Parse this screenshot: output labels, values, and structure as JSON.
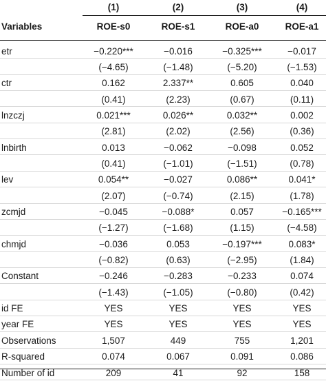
{
  "columns": [
    {
      "number": "(1)",
      "name": "ROE-s0"
    },
    {
      "number": "(2)",
      "name": "ROE-s1"
    },
    {
      "number": "(3)",
      "name": "ROE-a0"
    },
    {
      "number": "(4)",
      "name": "ROE-a1"
    }
  ],
  "variables_label": "Variables",
  "rows": [
    {
      "label": "etr",
      "values": [
        "−0.220***",
        "−0.016",
        "−0.325***",
        "−0.017"
      ]
    },
    {
      "label": "",
      "values": [
        "(−4.65)",
        "(−1.48)",
        "(−5.20)",
        "(−1.53)"
      ]
    },
    {
      "label": "ctr",
      "values": [
        "0.162",
        "2.337**",
        "0.605",
        "0.040"
      ]
    },
    {
      "label": "",
      "values": [
        "(0.41)",
        "(2.23)",
        "(0.67)",
        "(0.11)"
      ]
    },
    {
      "label": "lnzczj",
      "values": [
        "0.021***",
        "0.026**",
        "0.032**",
        "0.002"
      ]
    },
    {
      "label": "",
      "values": [
        "(2.81)",
        "(2.02)",
        "(2.56)",
        "(0.36)"
      ]
    },
    {
      "label": "lnbirth",
      "values": [
        "0.013",
        "−0.062",
        "−0.098",
        "0.052"
      ]
    },
    {
      "label": "",
      "values": [
        "(0.41)",
        "(−1.01)",
        "(−1.51)",
        "(0.78)"
      ]
    },
    {
      "label": "lev",
      "values": [
        "0.054**",
        "−0.027",
        "0.086**",
        "0.041*"
      ]
    },
    {
      "label": "",
      "values": [
        "(2.07)",
        "(−0.74)",
        "(2.15)",
        "(1.78)"
      ]
    },
    {
      "label": "zcmjd",
      "values": [
        "−0.045",
        "−0.088*",
        "0.057",
        "−0.165***"
      ]
    },
    {
      "label": "",
      "values": [
        "(−1.27)",
        "(−1.68)",
        "(1.15)",
        "(−4.58)"
      ]
    },
    {
      "label": "chmjd",
      "values": [
        "−0.036",
        "0.053",
        "−0.197***",
        "0.083*"
      ]
    },
    {
      "label": "",
      "values": [
        "(−0.82)",
        "(0.63)",
        "(−2.95)",
        "(1.84)"
      ]
    },
    {
      "label": "Constant",
      "values": [
        "−0.246",
        "−0.283",
        "−0.233",
        "0.074"
      ]
    },
    {
      "label": "",
      "values": [
        "(−1.43)",
        "(−1.05)",
        "(−0.80)",
        "(0.42)"
      ]
    },
    {
      "label": "id FE",
      "values": [
        "YES",
        "YES",
        "YES",
        "YES"
      ]
    },
    {
      "label": "year FE",
      "values": [
        "YES",
        "YES",
        "YES",
        "YES"
      ]
    },
    {
      "label": "Observations",
      "values": [
        "1,507",
        "449",
        "755",
        "1,201"
      ]
    },
    {
      "label": "R-squared",
      "values": [
        "0.074",
        "0.067",
        "0.091",
        "0.086"
      ]
    },
    {
      "label": "Number of id",
      "values": [
        "209",
        "41",
        "92",
        "158"
      ]
    }
  ]
}
